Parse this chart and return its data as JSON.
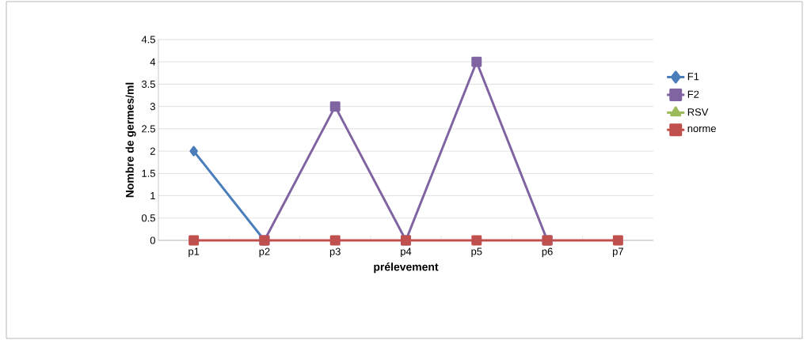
{
  "chart_data": {
    "type": "line",
    "xlabel": "prélevement",
    "ylabel": "Nombre de germes/ml",
    "categories": [
      "p1",
      "p2",
      "p3",
      "p4",
      "p5",
      "p6",
      "p7"
    ],
    "series": [
      {
        "name": "F1",
        "color": "#4a7ebb",
        "marker": "diamond",
        "values": [
          2,
          0,
          null,
          null,
          null,
          null,
          null
        ]
      },
      {
        "name": "F2",
        "color": "#8064a2",
        "marker": "square",
        "values": [
          null,
          0,
          3,
          0,
          4,
          0,
          null
        ]
      },
      {
        "name": "RSV",
        "color": "#9bbb59",
        "marker": "triangle",
        "values": [
          null,
          null,
          null,
          null,
          null,
          null,
          null
        ]
      },
      {
        "name": "norme",
        "color": "#c0504d",
        "marker": "square",
        "values": [
          0,
          0,
          0,
          0,
          0,
          0,
          0
        ]
      }
    ],
    "ylim": [
      0,
      4.5
    ],
    "yticks": [
      0,
      0.5,
      1,
      1.5,
      2,
      2.5,
      3,
      3.5,
      4,
      4.5
    ],
    "grid": "y",
    "legend": "right",
    "line_style": "solid"
  }
}
